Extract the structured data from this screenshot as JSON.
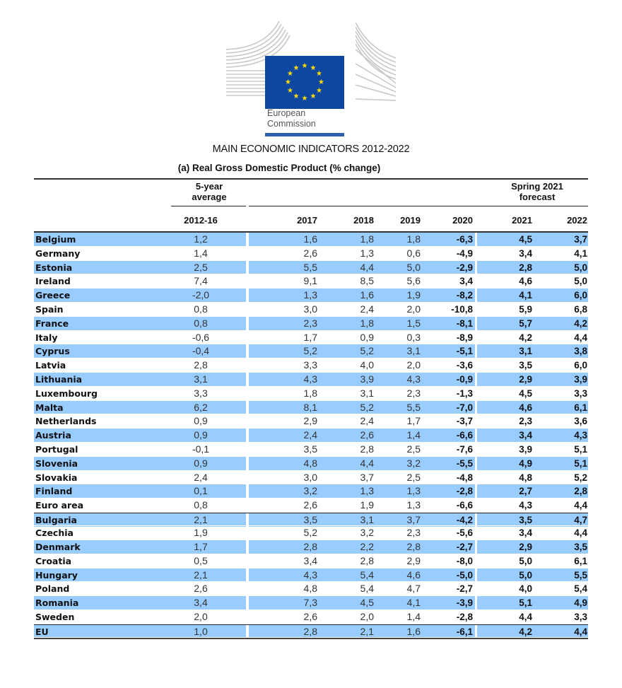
{
  "logo": {
    "org_line1": "European",
    "org_line2": "Commission",
    "flag_color": "#0e47a1",
    "star_color": "#ffdd00",
    "icon": "eu-flag-icon"
  },
  "title": "MAIN ECONOMIC INDICATORS 2012-2022",
  "subtitle": "(a) Real Gross Domestic Product (% change)",
  "header": {
    "avg_label_line1": "5-year",
    "avg_label_line2": "average",
    "forecast_label_line1": "Spring 2021",
    "forecast_label_line2": "forecast",
    "columns": [
      "2012-16",
      "2017",
      "2018",
      "2019",
      "2020",
      "2021",
      "2022"
    ]
  },
  "colors": {
    "row_highlight": "#99ccff",
    "rule": "#333333"
  },
  "rows": [
    {
      "name": "Belgium",
      "values": [
        "1,2",
        "1,6",
        "1,8",
        "1,8",
        "-6,3",
        "4,5",
        "3,7"
      ],
      "blue": true
    },
    {
      "name": "Germany",
      "values": [
        "1,4",
        "2,6",
        "1,3",
        "0,6",
        "-4,9",
        "3,4",
        "4,1"
      ],
      "blue": false
    },
    {
      "name": "Estonia",
      "values": [
        "2,5",
        "5,5",
        "4,4",
        "5,0",
        "-2,9",
        "2,8",
        "5,0"
      ],
      "blue": true
    },
    {
      "name": "Ireland",
      "values": [
        "7,4",
        "9,1",
        "8,5",
        "5,6",
        "3,4",
        "4,6",
        "5,0"
      ],
      "blue": false
    },
    {
      "name": "Greece",
      "values": [
        "-2,0",
        "1,3",
        "1,6",
        "1,9",
        "-8,2",
        "4,1",
        "6,0"
      ],
      "blue": true
    },
    {
      "name": "Spain",
      "values": [
        "0,8",
        "3,0",
        "2,4",
        "2,0",
        "-10,8",
        "5,9",
        "6,8"
      ],
      "blue": false
    },
    {
      "name": "France",
      "values": [
        "0,8",
        "2,3",
        "1,8",
        "1,5",
        "-8,1",
        "5,7",
        "4,2"
      ],
      "blue": true
    },
    {
      "name": "Italy",
      "values": [
        "-0,6",
        "1,7",
        "0,9",
        "0,3",
        "-8,9",
        "4,2",
        "4,4"
      ],
      "blue": false
    },
    {
      "name": "Cyprus",
      "values": [
        "-0,4",
        "5,2",
        "5,2",
        "3,1",
        "-5,1",
        "3,1",
        "3,8"
      ],
      "blue": true
    },
    {
      "name": "Latvia",
      "values": [
        "2,8",
        "3,3",
        "4,0",
        "2,0",
        "-3,6",
        "3,5",
        "6,0"
      ],
      "blue": false
    },
    {
      "name": "Lithuania",
      "values": [
        "3,1",
        "4,3",
        "3,9",
        "4,3",
        "-0,9",
        "2,9",
        "3,9"
      ],
      "blue": true
    },
    {
      "name": "Luxembourg",
      "values": [
        "3,3",
        "1,8",
        "3,1",
        "2,3",
        "-1,3",
        "4,5",
        "3,3"
      ],
      "blue": false
    },
    {
      "name": "Malta",
      "values": [
        "6,2",
        "8,1",
        "5,2",
        "5,5",
        "-7,0",
        "4,6",
        "6,1"
      ],
      "blue": true
    },
    {
      "name": "Netherlands",
      "values": [
        "0,9",
        "2,9",
        "2,4",
        "1,7",
        "-3,7",
        "2,3",
        "3,6"
      ],
      "blue": false
    },
    {
      "name": "Austria",
      "values": [
        "0,9",
        "2,4",
        "2,6",
        "1,4",
        "-6,6",
        "3,4",
        "4,3"
      ],
      "blue": true
    },
    {
      "name": "Portugal",
      "values": [
        "-0,1",
        "3,5",
        "2,8",
        "2,5",
        "-7,6",
        "3,9",
        "5,1"
      ],
      "blue": false
    },
    {
      "name": "Slovenia",
      "values": [
        "0,9",
        "4,8",
        "4,4",
        "3,2",
        "-5,5",
        "4,9",
        "5,1"
      ],
      "blue": true
    },
    {
      "name": "Slovakia",
      "values": [
        "2,4",
        "3,0",
        "3,7",
        "2,5",
        "-4,8",
        "4,8",
        "5,2"
      ],
      "blue": false
    },
    {
      "name": "Finland",
      "values": [
        "0,1",
        "3,2",
        "1,3",
        "1,3",
        "-2,8",
        "2,7",
        "2,8"
      ],
      "blue": true
    },
    {
      "name": "Euro area",
      "values": [
        "0,8",
        "2,6",
        "1,9",
        "1,3",
        "-6,6",
        "4,3",
        "4,4"
      ],
      "blue": false,
      "aggregate": true
    },
    {
      "name": "Bulgaria",
      "values": [
        "2,1",
        "3,5",
        "3,1",
        "3,7",
        "-4,2",
        "3,5",
        "4,7"
      ],
      "blue": true,
      "sep_top": true
    },
    {
      "name": "Czechia",
      "values": [
        "1,9",
        "5,2",
        "3,2",
        "2,3",
        "-5,6",
        "3,4",
        "4,4"
      ],
      "blue": false
    },
    {
      "name": "Denmark",
      "values": [
        "1,7",
        "2,8",
        "2,2",
        "2,8",
        "-2,7",
        "2,9",
        "3,5"
      ],
      "blue": true
    },
    {
      "name": "Croatia",
      "values": [
        "0,5",
        "3,4",
        "2,8",
        "2,9",
        "-8,0",
        "5,0",
        "6,1"
      ],
      "blue": false
    },
    {
      "name": "Hungary",
      "values": [
        "2,1",
        "4,3",
        "5,4",
        "4,6",
        "-5,0",
        "5,0",
        "5,5"
      ],
      "blue": true
    },
    {
      "name": "Poland",
      "values": [
        "2,6",
        "4,8",
        "5,4",
        "4,7",
        "-2,7",
        "4,0",
        "5,4"
      ],
      "blue": false
    },
    {
      "name": "Romania",
      "values": [
        "3,4",
        "7,3",
        "4,5",
        "4,1",
        "-3,9",
        "5,1",
        "4,9"
      ],
      "blue": true
    },
    {
      "name": "Sweden",
      "values": [
        "2,0",
        "2,6",
        "2,0",
        "1,4",
        "-2,8",
        "4,4",
        "3,3"
      ],
      "blue": false
    },
    {
      "name": "EU",
      "values": [
        "1,0",
        "2,8",
        "2,1",
        "1,6",
        "-6,1",
        "4,2",
        "4,4"
      ],
      "blue": true,
      "sep_top": true,
      "aggregate": true
    }
  ]
}
